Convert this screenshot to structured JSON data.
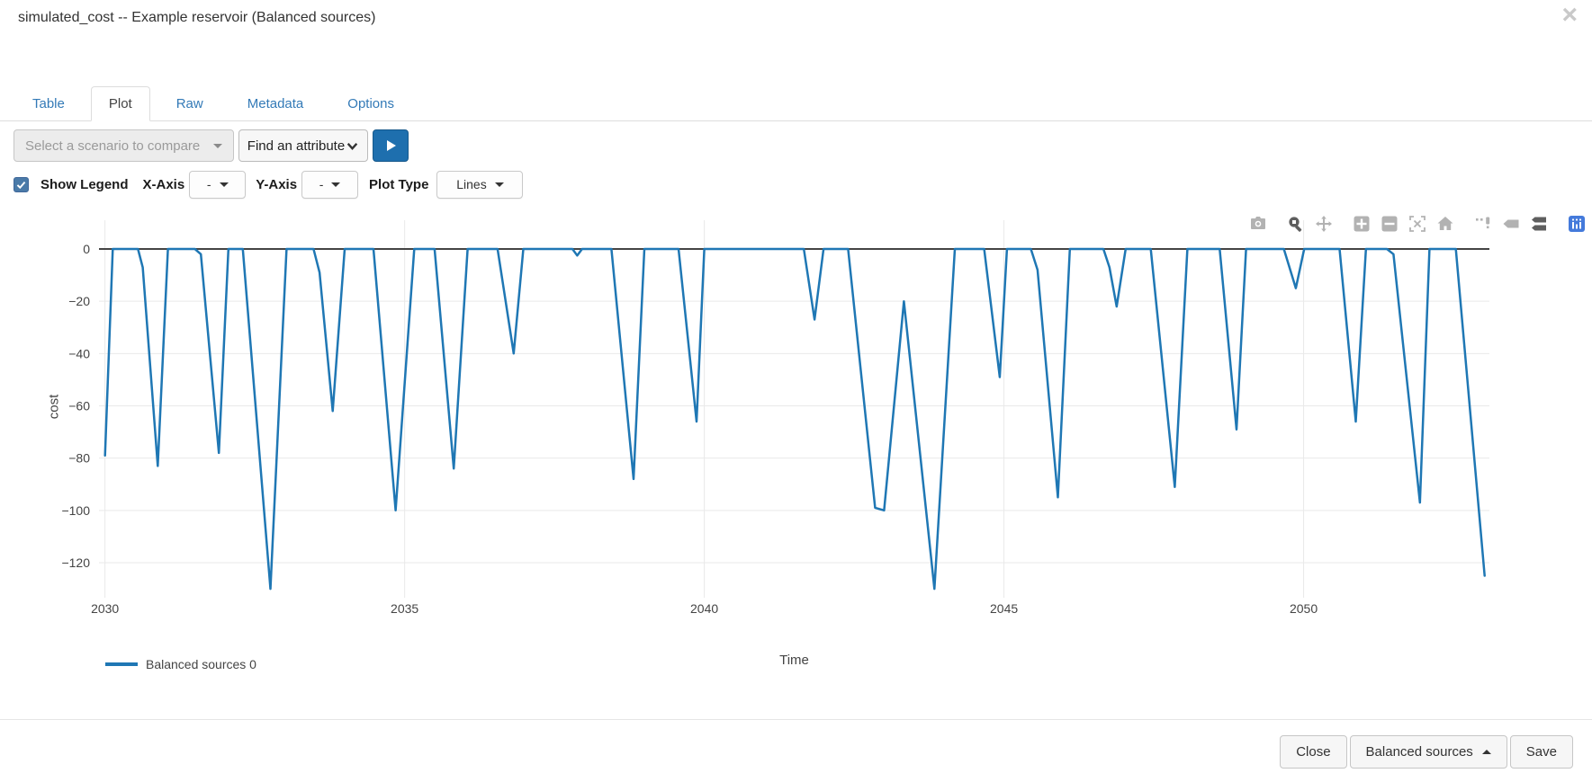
{
  "modal": {
    "title": "simulated_cost -- Example reservoir (Balanced sources)",
    "close_icon": "×"
  },
  "tabs": [
    {
      "label": "Table",
      "active": false
    },
    {
      "label": "Plot",
      "active": true
    },
    {
      "label": "Raw",
      "active": false
    },
    {
      "label": "Metadata",
      "active": false
    },
    {
      "label": "Options",
      "active": false
    }
  ],
  "toolbar": {
    "scenario_select_placeholder": "Select a scenario to compare",
    "attribute_select_label": "Find an attribute",
    "run_button_icon": "play-icon"
  },
  "plot_controls": {
    "show_legend_label": "Show Legend",
    "show_legend_checked": true,
    "x_axis_label": "X-Axis",
    "x_axis_value": "-",
    "y_axis_label": "Y-Axis",
    "y_axis_value": "-",
    "plot_type_label": "Plot Type",
    "plot_type_value": "Lines"
  },
  "modebar": {
    "icons": [
      "camera-icon",
      "zoom-icon",
      "pan-icon",
      "zoom-in-icon",
      "zoom-out-icon",
      "autoscale-icon",
      "home-icon",
      "spikelines-icon",
      "hover-closest-icon",
      "hover-compare-icon",
      "plotly-logo-icon"
    ],
    "active_icons": [
      "zoom-icon",
      "hover-compare-icon"
    ],
    "inactive_color": "#b2b2b2",
    "active_color": "#5e5e5e",
    "logo_color": "#447adb"
  },
  "chart_data": {
    "type": "line",
    "title": "",
    "xlabel": "Time",
    "ylabel": "cost",
    "x_ticks": [
      2030,
      2035,
      2040,
      2045,
      2050
    ],
    "y_ticks": [
      0,
      -20,
      -40,
      -60,
      -80,
      -100,
      -120
    ],
    "xlim": [
      2029.9,
      2053.1
    ],
    "ylim": [
      -131,
      11
    ],
    "grid": true,
    "grid_color": "#e9e9e9",
    "zeroline_color": "#444444",
    "legend_position": "bottom-left",
    "series": [
      {
        "name": "Balanced sources 0",
        "color": "#1f77b4",
        "x": [
          2030.0,
          2030.13,
          2030.55,
          2030.63,
          2030.88,
          2031.05,
          2031.5,
          2031.6,
          2031.9,
          2032.06,
          2032.3,
          2032.76,
          2033.03,
          2033.48,
          2033.58,
          2033.8,
          2034.0,
          2034.48,
          2034.85,
          2035.16,
          2035.5,
          2035.82,
          2036.05,
          2036.55,
          2036.82,
          2036.98,
          2037.8,
          2037.88,
          2037.96,
          2038.45,
          2038.82,
          2039.0,
          2039.57,
          2039.87,
          2040.0,
          2041.66,
          2041.84,
          2041.99,
          2042.4,
          2042.85,
          2043.0,
          2043.33,
          2043.84,
          2044.18,
          2044.67,
          2044.93,
          2045.05,
          2045.45,
          2045.56,
          2045.9,
          2046.1,
          2046.66,
          2046.76,
          2046.88,
          2047.03,
          2047.45,
          2047.85,
          2048.06,
          2048.6,
          2048.88,
          2049.04,
          2049.67,
          2049.87,
          2050.01,
          2050.6,
          2050.87,
          2051.04,
          2051.39,
          2051.5,
          2051.94,
          2052.1,
          2052.54,
          2053.02
        ],
        "y": [
          -79,
          0,
          0,
          -7,
          -83,
          0,
          0,
          -2,
          -78,
          0,
          0,
          -130,
          0,
          0,
          -9,
          -62,
          0,
          0,
          -100,
          0,
          0,
          -84,
          0,
          0,
          -40,
          0,
          0,
          -2.5,
          0,
          0,
          -88,
          0,
          0,
          -66,
          0,
          0,
          -27,
          0,
          0,
          -99,
          -100,
          -20,
          -130,
          0,
          0,
          -49,
          0,
          0,
          -8,
          -95,
          0,
          0,
          -7,
          -22,
          0,
          0,
          -91,
          0,
          0,
          -69,
          0,
          0,
          -15,
          0,
          0,
          -66,
          0,
          0,
          -2,
          -97,
          0,
          0,
          -125
        ]
      }
    ]
  },
  "footer": {
    "close_label": "Close",
    "scenario_button_label": "Balanced sources",
    "save_label": "Save"
  }
}
